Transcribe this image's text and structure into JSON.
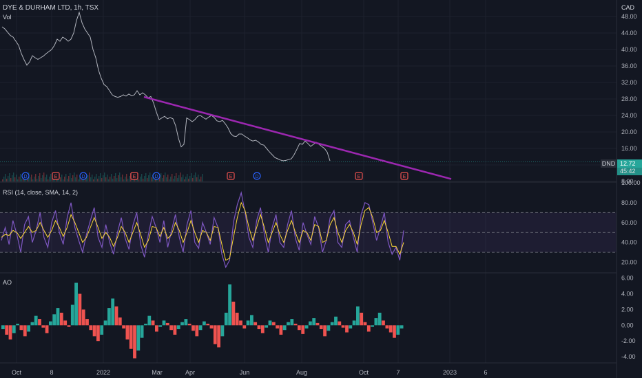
{
  "header": {
    "symbol_line": "DYE & DURHAM LTD, 1h, TSX",
    "volume_label": "Vol",
    "currency": "CAD"
  },
  "price_badge": {
    "ticker": "DND",
    "price": "12.72",
    "countdown": "45:42",
    "color": "#26a69a"
  },
  "colors": {
    "background": "#131722",
    "grid": "#1e222d",
    "price_line": "#b2b5be",
    "trendline": "#9c27b0",
    "rsi_line": "#7e57c2",
    "rsi_sma": "#fdd835",
    "ao_up": "#26a69a",
    "ao_down": "#ef5350"
  },
  "chart_data": [
    {
      "type": "line",
      "pane": "price",
      "title": "DYE & DURHAM LTD, 1h, TSX",
      "ylim": [
        8,
        50
      ],
      "y_ticks": [
        "48.00",
        "44.00",
        "40.00",
        "36.00",
        "32.00",
        "28.00",
        "24.00",
        "20.00",
        "16.00",
        "12.00",
        "8.00"
      ],
      "x_labels": [
        "Oct",
        "8",
        "2022",
        "Mar",
        "Apr",
        "Jun",
        "Aug",
        "Oct",
        "7",
        "2023",
        "6"
      ],
      "series": [
        {
          "x": [
            0,
            2,
            4,
            6,
            8,
            10,
            12,
            14,
            16,
            18,
            20,
            22,
            24,
            26,
            28,
            30,
            32,
            34,
            36,
            38,
            40,
            42,
            44,
            46,
            48,
            50,
            52,
            54,
            56,
            58,
            60,
            62,
            64,
            66,
            68,
            70,
            72,
            74,
            76,
            78,
            80,
            82,
            84,
            86,
            88,
            90,
            92,
            94,
            96,
            98,
            100,
            102,
            104,
            106,
            108,
            110,
            112,
            114,
            116,
            118,
            120,
            122,
            124,
            126,
            128,
            130,
            132,
            134,
            136,
            138,
            140,
            142,
            144,
            146,
            148,
            150,
            152,
            154,
            156,
            158,
            160,
            162,
            164,
            166,
            168,
            170,
            172,
            174,
            176,
            178,
            180,
            182,
            184,
            186,
            188,
            190,
            192,
            194,
            196,
            198,
            200,
            202,
            204,
            206,
            208,
            210,
            212,
            214,
            216,
            218,
            220,
            222,
            224,
            226,
            228,
            230,
            232,
            234,
            236,
            238,
            240,
            242,
            244,
            246,
            248,
            250,
            252,
            254,
            256,
            258,
            260,
            262,
            264,
            266,
            268,
            270,
            272,
            274,
            276,
            278,
            280,
            282,
            284,
            286,
            288,
            290,
            292,
            294,
            296,
            298
          ],
          "values": [
            45.5,
            45,
            44.2,
            43.4,
            43,
            42,
            41,
            39,
            37.5,
            36.2,
            37,
            38.5,
            38,
            37.6,
            38,
            38.4,
            39,
            39.5,
            40,
            41,
            42.5,
            42,
            43,
            42.6,
            42,
            42.5,
            44,
            47,
            49,
            46.5,
            45,
            44,
            43,
            40,
            38,
            35,
            33,
            31.5,
            31,
            30,
            29,
            28.6,
            28.4,
            28.6,
            29,
            28.7,
            29.2,
            28.8,
            29,
            30,
            29,
            29.5,
            29,
            28.3,
            28.6,
            27,
            24.8,
            23,
            23.4,
            23.8,
            23.2,
            23.5,
            23.2,
            21.5,
            18.5,
            16.4,
            17,
            23.4,
            23,
            22.5,
            23,
            23.8,
            24,
            23.5,
            23.1,
            23.6,
            24,
            23.5,
            22.7,
            22.5,
            22.8,
            22,
            21,
            19.6,
            19,
            18.9,
            19.5,
            19.5,
            19,
            18.6,
            18.1,
            17.8,
            18,
            17.6,
            17,
            16.8,
            16,
            15.2,
            14.5,
            13.8,
            13.5,
            13.2,
            13,
            13.1,
            13.3,
            13.5,
            14.5,
            15.8,
            17.2,
            17,
            17.8,
            17.2,
            16.5,
            17,
            17.5,
            17,
            16.5,
            16,
            15.1,
            13,
            12.72,
            12.72,
            12.72,
            12.72,
            12.72,
            12.72,
            12.72,
            12.72,
            12.72,
            12.72,
            12.72,
            12.72,
            12.72,
            12.72,
            12.72,
            12.72,
            12.72,
            12.72,
            12.72,
            12.72,
            12.72,
            12.72,
            12.72,
            12.72,
            12.72,
            12.72,
            12.72,
            12.72,
            12.72,
            12.72
          ]
        }
      ],
      "trendline": {
        "from": [
          103,
          28.5
        ],
        "to": [
          326,
          8.6
        ]
      },
      "event_markers": [
        {
          "label": "D",
          "type": "dividend",
          "x": 17
        },
        {
          "label": "E",
          "type": "earnings",
          "x": 39
        },
        {
          "label": "D",
          "type": "dividend",
          "x": 59
        },
        {
          "label": "E",
          "type": "earnings",
          "x": 96
        },
        {
          "label": "D",
          "type": "dividend",
          "x": 112
        },
        {
          "label": "E",
          "type": "earnings",
          "x": 166
        },
        {
          "label": "D",
          "type": "dividend",
          "x": 185
        },
        {
          "label": "E",
          "type": "earnings",
          "x": 259
        },
        {
          "label": "E",
          "type": "earnings",
          "x": 292
        }
      ]
    },
    {
      "type": "line",
      "pane": "rsi",
      "title": "RSI (14, close, SMA, 14, 2)",
      "ylim": [
        10,
        100
      ],
      "y_ticks": [
        "100.00",
        "80.00",
        "60.00",
        "40.00",
        "20.00"
      ],
      "bands": [
        70,
        50,
        30
      ],
      "series": [
        {
          "name": "RSI",
          "values": [
            42,
            55,
            38,
            62,
            48,
            30,
            58,
            66,
            40,
            52,
            70,
            45,
            35,
            60,
            72,
            50,
            38,
            65,
            80,
            55,
            42,
            30,
            48,
            62,
            75,
            45,
            35,
            58,
            40,
            28,
            50,
            65,
            44,
            33,
            57,
            70,
            38,
            25,
            48,
            66,
            55,
            40,
            62,
            35,
            52,
            68,
            45,
            30,
            58,
            72,
            40,
            34,
            60,
            50,
            38,
            65,
            55,
            28,
            15,
            22,
            60,
            78,
            90,
            70,
            45,
            35,
            62,
            75,
            48,
            30,
            55,
            68,
            40,
            35,
            58,
            72,
            44,
            32,
            60,
            48,
            38,
            66,
            55,
            30,
            42,
            65,
            72,
            40,
            35,
            58,
            62,
            45,
            30,
            68,
            80,
            78,
            60,
            42,
            55,
            70,
            40,
            28,
            35,
            22,
            52
          ]
        },
        {
          "name": "SMA",
          "values": [
            45,
            48,
            47,
            52,
            50,
            44,
            50,
            56,
            50,
            52,
            60,
            52,
            45,
            52,
            62,
            55,
            46,
            55,
            68,
            60,
            50,
            40,
            45,
            55,
            65,
            55,
            44,
            50,
            45,
            36,
            45,
            56,
            50,
            40,
            50,
            60,
            48,
            35,
            42,
            56,
            55,
            46,
            55,
            44,
            48,
            60,
            52,
            40,
            50,
            62,
            50,
            40,
            52,
            50,
            42,
            56,
            55,
            38,
            22,
            24,
            45,
            65,
            80,
            72,
            55,
            42,
            55,
            68,
            55,
            40,
            50,
            60,
            48,
            40,
            52,
            62,
            50,
            40,
            52,
            50,
            42,
            58,
            56,
            40,
            42,
            58,
            65,
            50,
            40,
            52,
            58,
            50,
            38,
            58,
            72,
            75,
            65,
            50,
            52,
            62,
            50,
            36,
            36,
            28,
            40
          ]
        }
      ]
    },
    {
      "type": "bar",
      "pane": "ao",
      "title": "AO",
      "ylim": [
        -4.6,
        6.4
      ],
      "y_ticks": [
        "6.00",
        "4.00",
        "2.00",
        "0.00",
        "-2.00",
        "-4.00"
      ],
      "values": [
        -0.5,
        -1.2,
        -1.8,
        -1,
        0.2,
        -0.6,
        -1.4,
        -0.8,
        0.4,
        1.2,
        0.8,
        -0.3,
        -1,
        0.5,
        1.4,
        2.2,
        1.6,
        0.6,
        -0.2,
        2.6,
        5.4,
        4,
        2,
        0.8,
        -0.6,
        -1.4,
        -2,
        -1.2,
        0.6,
        2.2,
        3.4,
        2.4,
        1,
        -0.4,
        -1.8,
        -3,
        -4.2,
        -3.2,
        -1.6,
        0.2,
        1.2,
        0.6,
        -0.8,
        -0.2,
        0.6,
        0.3,
        -0.6,
        -1.2,
        -0.5,
        0.4,
        0.8,
        0.2,
        -0.7,
        -1.4,
        -0.6,
        0.5,
        0.2,
        -0.4,
        -2.4,
        -2.8,
        -1.4,
        1.6,
        5.2,
        3,
        1.6,
        0.6,
        -0.4,
        0.6,
        1.3,
        0.4,
        -0.5,
        -1,
        -0.3,
        0.6,
        0.4,
        -0.4,
        -1.2,
        -0.6,
        0.4,
        0.8,
        0.2,
        -0.6,
        -1.1,
        -0.4,
        0.5,
        0.9,
        0.3,
        -0.5,
        -1.4,
        -0.7,
        0.4,
        1.1,
        0.5,
        -0.3,
        -0.9,
        -0.4,
        0.6,
        2.4,
        1.6,
        0.4,
        -0.8,
        -0.2,
        0.9,
        1.6,
        0.6,
        -0.4,
        -0.9,
        -1.6,
        -1.2,
        -0.4
      ]
    }
  ]
}
